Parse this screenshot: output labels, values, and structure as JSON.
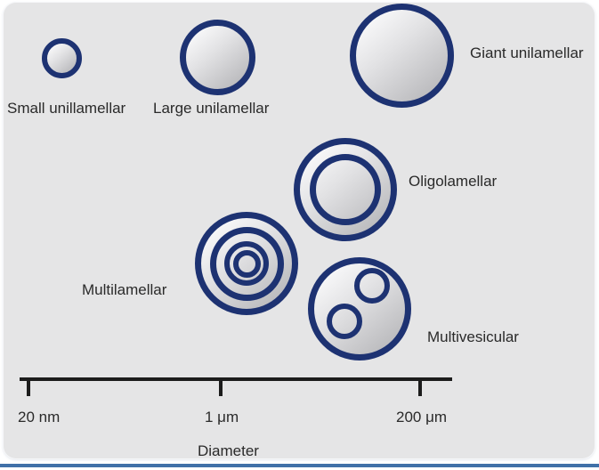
{
  "diagram": {
    "vesicles": {
      "small": {
        "label": "Small unillamellar"
      },
      "large": {
        "label": "Large unilamellar"
      },
      "giant": {
        "label": "Giant unilamellar"
      },
      "oligo": {
        "label": "Oligolamellar"
      },
      "multilamellar": {
        "label": "Multilamellar"
      },
      "multivesicular": {
        "label": "Multivesicular"
      }
    },
    "axis": {
      "tick_labels": [
        "20 nm",
        "1 μm",
        "200 μm"
      ],
      "title": "Diameter"
    },
    "colors": {
      "membrane_ring": "#1d3272",
      "panel_background": "#e5e5e6",
      "bottom_bar": "#4070a8",
      "axis_line": "#1c1c1c",
      "text": "#2a2a2a"
    }
  }
}
